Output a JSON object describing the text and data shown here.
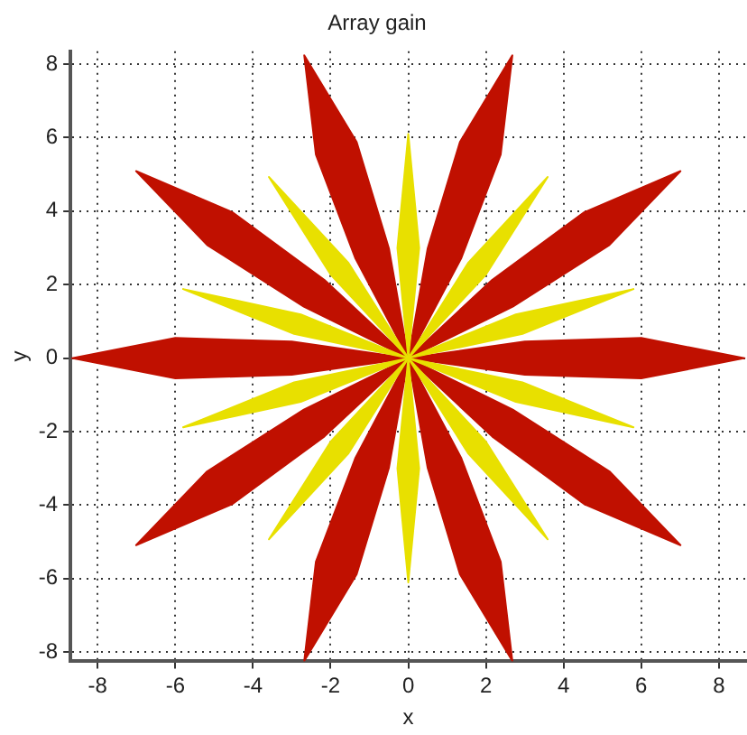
{
  "chart_data": {
    "type": "area",
    "title": "Array gain",
    "xlabel": "x",
    "ylabel": "y",
    "xlim": [
      -8.7,
      8.7
    ],
    "ylim": [
      -8.25,
      8.35
    ],
    "xticks": [
      -8,
      -6,
      -4,
      -2,
      0,
      2,
      4,
      6,
      8
    ],
    "yticks": [
      -8,
      -6,
      -4,
      -2,
      0,
      2,
      4,
      6,
      8
    ],
    "grid": true,
    "marker": "none",
    "series": [
      {
        "color": "#e8e000",
        "x": [
          0,
          2.77,
          5.8,
          2.94,
          0
        ],
        "values": [
          0,
          1.19,
          1.88,
          0.66,
          0
        ]
      },
      {
        "color": "#e8e000",
        "x": [
          0,
          1.54,
          3.59,
          1.99,
          0
        ],
        "values": [
          0,
          2.59,
          4.93,
          2.26,
          0
        ]
      },
      {
        "color": "#e8e000",
        "x": [
          0,
          -0.28,
          0,
          0.28,
          0
        ],
        "values": [
          0,
          3,
          6.1,
          3,
          0
        ]
      },
      {
        "color": "#e8e000",
        "x": [
          0,
          -1.99,
          -3.59,
          -1.54,
          0
        ],
        "values": [
          0,
          2.26,
          4.93,
          2.59,
          0
        ]
      },
      {
        "color": "#e8e000",
        "x": [
          0,
          -2.94,
          -5.8,
          -2.77,
          0
        ],
        "values": [
          0,
          0.66,
          1.88,
          1.19,
          0
        ]
      },
      {
        "color": "#e8e000",
        "x": [
          0,
          -2.77,
          -5.8,
          -2.94,
          0
        ],
        "values": [
          0,
          -1.19,
          -1.88,
          -0.66,
          0
        ]
      },
      {
        "color": "#e8e000",
        "x": [
          0,
          -1.54,
          -3.59,
          -1.99,
          0
        ],
        "values": [
          0,
          -2.59,
          -4.93,
          -2.26,
          0
        ]
      },
      {
        "color": "#e8e000",
        "x": [
          0,
          0.28,
          0,
          -0.28,
          0
        ],
        "values": [
          0,
          -3,
          -6.1,
          -3,
          0
        ]
      },
      {
        "color": "#e8e000",
        "x": [
          0,
          1.99,
          3.59,
          1.54,
          0
        ],
        "values": [
          0,
          -2.26,
          -4.93,
          -2.59,
          0
        ]
      },
      {
        "color": "#e8e000",
        "x": [
          0,
          2.94,
          5.8,
          2.77,
          0
        ],
        "values": [
          0,
          -0.66,
          -1.88,
          -1.19,
          0
        ]
      },
      {
        "color": "#c01000",
        "x": [
          0,
          3,
          6,
          8.66,
          6,
          3,
          0
        ],
        "values": [
          0,
          0.45,
          0.55,
          0,
          -0.55,
          -0.45,
          0
        ]
      },
      {
        "color": "#c01000",
        "x": [
          0,
          2.16,
          4.53,
          7.01,
          5.18,
          2.69,
          0
        ],
        "values": [
          0,
          2.13,
          3.97,
          5.09,
          3.08,
          1.4,
          0
        ]
      },
      {
        "color": "#c01000",
        "x": [
          0,
          0.5,
          1.33,
          2.68,
          2.38,
          1.36,
          0
        ],
        "values": [
          0,
          2.99,
          5.88,
          8.24,
          5.54,
          2.71,
          0
        ]
      },
      {
        "color": "#c01000",
        "x": [
          0,
          -1.36,
          -2.38,
          -2.68,
          -1.33,
          -0.5,
          0
        ],
        "values": [
          0,
          2.71,
          5.54,
          8.24,
          5.88,
          2.99,
          0
        ]
      },
      {
        "color": "#c01000",
        "x": [
          0,
          -2.69,
          -5.18,
          -7.01,
          -4.53,
          -2.16,
          0
        ],
        "values": [
          0,
          1.4,
          3.08,
          5.09,
          3.97,
          2.13,
          0
        ]
      },
      {
        "color": "#c01000",
        "x": [
          0,
          -3,
          -6,
          -8.66,
          -6,
          -3,
          0
        ],
        "values": [
          0,
          -0.45,
          -0.55,
          0,
          0.55,
          0.45,
          0
        ]
      },
      {
        "color": "#c01000",
        "x": [
          0,
          -2.16,
          -4.53,
          -7.01,
          -5.18,
          -2.69,
          0
        ],
        "values": [
          0,
          -2.13,
          -3.97,
          -5.09,
          -3.08,
          -1.4,
          0
        ]
      },
      {
        "color": "#c01000",
        "x": [
          0,
          -0.5,
          -1.33,
          -2.68,
          -2.38,
          -1.36,
          0
        ],
        "values": [
          0,
          -2.99,
          -5.88,
          -8.24,
          -5.54,
          -2.71,
          0
        ]
      },
      {
        "color": "#c01000",
        "x": [
          0,
          1.36,
          2.38,
          2.68,
          1.33,
          0.5,
          0
        ],
        "values": [
          0,
          -2.71,
          -5.54,
          -8.24,
          -5.88,
          -2.99,
          0
        ]
      },
      {
        "color": "#c01000",
        "x": [
          0,
          2.69,
          5.18,
          7.01,
          4.53,
          2.16,
          0
        ],
        "values": [
          0,
          -1.4,
          -3.08,
          -5.09,
          -3.97,
          -2.13,
          0
        ]
      }
    ]
  }
}
